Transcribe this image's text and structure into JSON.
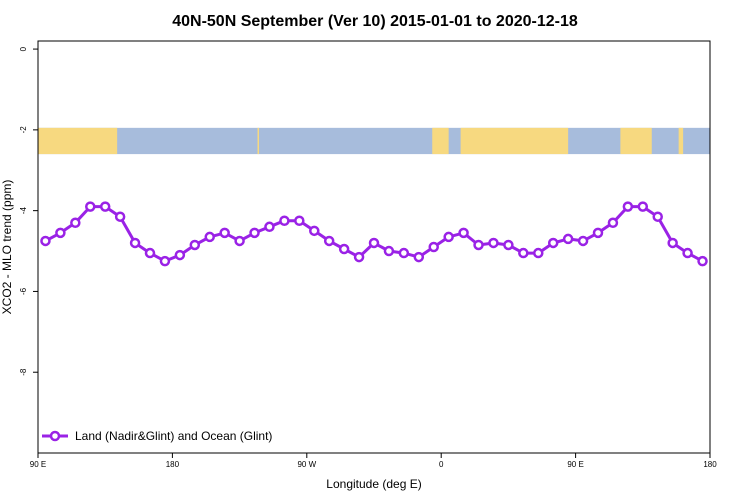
{
  "chart_data": {
    "type": "line",
    "title": "40N-50N September (Ver 10)   2015-01-01 to 2020-12-18",
    "xlabel": "Longitude (deg E)",
    "ylabel": "XCO2 - MLO trend (ppm)",
    "xlim": [
      90,
      540
    ],
    "ylim": [
      -10,
      0.2
    ],
    "x_ticks": [
      {
        "value": 90,
        "label": "90 E"
      },
      {
        "value": 180,
        "label": "180"
      },
      {
        "value": 270,
        "label": "90 W"
      },
      {
        "value": 360,
        "label": "0"
      },
      {
        "value": 450,
        "label": "90 E"
      },
      {
        "value": 540,
        "label": "180"
      }
    ],
    "y_ticks": [
      {
        "value": 0,
        "label": "0"
      },
      {
        "value": -2,
        "label": "-2"
      },
      {
        "value": -4,
        "label": "-4"
      },
      {
        "value": -6,
        "label": "-6"
      },
      {
        "value": -8,
        "label": "-8"
      }
    ],
    "land_ocean_band": {
      "y_range": [
        -2.6,
        -1.95
      ],
      "ocean_color": "#a7bcdc",
      "land_color": "#f7d980",
      "land_segments": [
        [
          90,
          143
        ],
        [
          237,
          238
        ],
        [
          354,
          365
        ],
        [
          373,
          445
        ],
        [
          480,
          501
        ],
        [
          519,
          522
        ]
      ]
    },
    "legend_position": "bottom-left",
    "series": [
      {
        "name": "Land (Nadir&Glint) and Ocean (Glint)",
        "color": "#9a22e6",
        "x": [
          95,
          105,
          115,
          125,
          135,
          145,
          155,
          165,
          175,
          185,
          195,
          205,
          215,
          225,
          235,
          245,
          255,
          265,
          275,
          285,
          295,
          305,
          315,
          325,
          335,
          345,
          355,
          365,
          375,
          385,
          395,
          405,
          415,
          425,
          435,
          445,
          455,
          465,
          475,
          485,
          495,
          505,
          515,
          525,
          535
        ],
        "values": [
          -4.75,
          -4.55,
          -4.3,
          -3.9,
          -3.9,
          -4.15,
          -4.8,
          -5.05,
          -5.25,
          -5.1,
          -4.85,
          -4.65,
          -4.55,
          -4.75,
          -4.55,
          -4.4,
          -4.25,
          -4.25,
          -4.5,
          -4.75,
          -4.95,
          -5.15,
          -4.8,
          -5.0,
          -5.05,
          -5.15,
          -4.9,
          -4.65,
          -4.55,
          -4.85,
          -4.8,
          -4.85,
          -5.05,
          -5.05,
          -4.8,
          -4.7,
          -4.75,
          -4.55,
          -4.3,
          -3.9,
          -3.9,
          -4.15,
          -4.8,
          -5.05,
          -5.25
        ]
      }
    ]
  }
}
